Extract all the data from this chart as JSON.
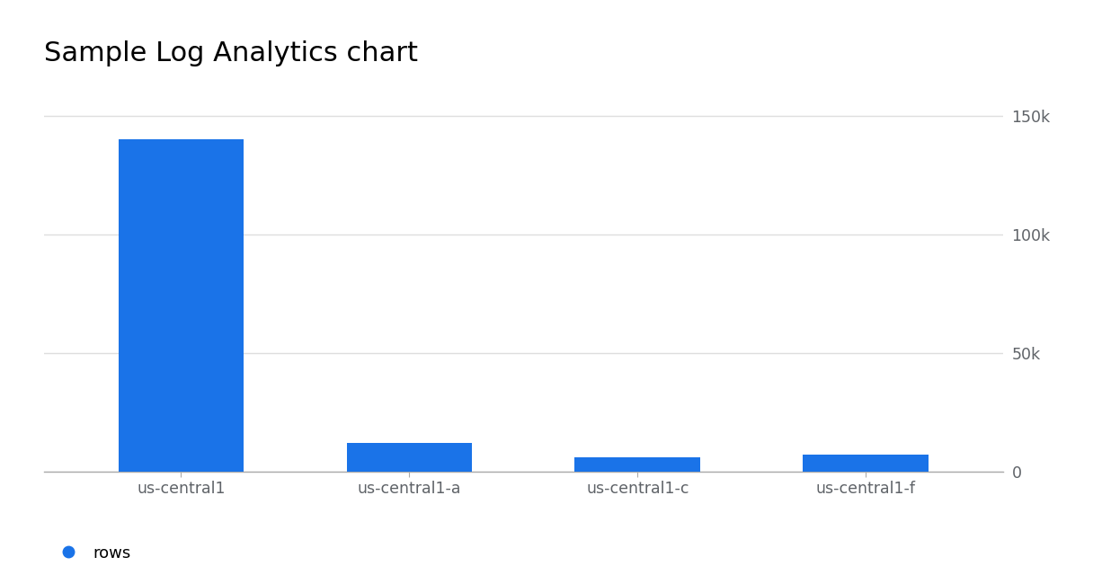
{
  "title": "Sample Log Analytics chart",
  "categories": [
    "us-central1",
    "us-central1-a",
    "us-central1-c",
    "us-central1-f"
  ],
  "values": [
    140000,
    12000,
    6000,
    7000
  ],
  "bar_color": "#1a73e8",
  "ylim": [
    0,
    160000
  ],
  "yticks": [
    0,
    50000,
    100000,
    150000
  ],
  "ytick_labels": [
    "0",
    "50k",
    "100k",
    "150k"
  ],
  "legend_label": "rows",
  "legend_color": "#1a73e8",
  "background_color": "#ffffff",
  "title_fontsize": 22,
  "tick_fontsize": 12.5,
  "legend_fontsize": 13,
  "grid_color": "#dedede",
  "axis_label_color": "#5f6368",
  "bar_width": 0.55,
  "x_positions": [
    0,
    1,
    2,
    3
  ]
}
